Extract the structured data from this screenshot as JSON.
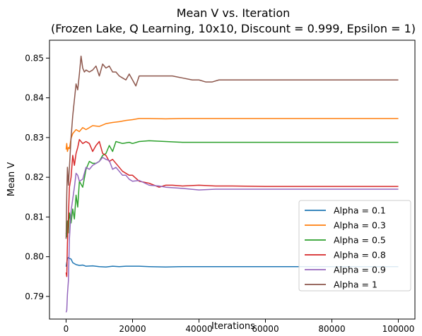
{
  "chart_data": {
    "type": "line",
    "title": "Mean V vs. Iteration",
    "subtitle": "(Frozen Lake, Q Learning, 10x10, Discount = 0.999, Epsilon = 1)",
    "xlabel": "Iterations",
    "ylabel": "Mean V",
    "xlim": [
      -5000,
      105000
    ],
    "ylim": [
      0.7843,
      0.8545
    ],
    "x_ticks": [
      0,
      20000,
      40000,
      60000,
      80000,
      100000
    ],
    "x_tick_labels": [
      "0",
      "20000",
      "40000",
      "60000",
      "80000",
      "100000"
    ],
    "y_ticks": [
      0.79,
      0.8,
      0.81,
      0.82,
      0.83,
      0.84,
      0.85
    ],
    "y_tick_labels": [
      "0.79",
      "0.80",
      "0.81",
      "0.82",
      "0.83",
      "0.84",
      "0.85"
    ],
    "grid": false,
    "legend_position": "lower-right",
    "series": [
      {
        "name": "Alpha = 0.1",
        "color": "#1f77b4",
        "x": [
          0,
          200,
          400,
          700,
          1000,
          1500,
          2000,
          3000,
          4000,
          5000,
          6000,
          8000,
          10000,
          12000,
          14000,
          16000,
          18000,
          20000,
          22000,
          25000,
          30000,
          35000,
          40000,
          50000,
          60000,
          80000,
          100000
        ],
        "y": [
          0.7975,
          0.7985,
          0.7995,
          0.7998,
          0.7996,
          0.7994,
          0.7985,
          0.798,
          0.7978,
          0.7979,
          0.7976,
          0.7977,
          0.7975,
          0.7974,
          0.7976,
          0.7975,
          0.7976,
          0.7976,
          0.7976,
          0.7975,
          0.7974,
          0.7975,
          0.7975,
          0.7975,
          0.7975,
          0.7975,
          0.7975
        ]
      },
      {
        "name": "Alpha = 0.3",
        "color": "#ff7f0e",
        "x": [
          0,
          200,
          400,
          700,
          1000,
          1500,
          2000,
          3000,
          4000,
          5000,
          6000,
          8000,
          10000,
          12000,
          14000,
          16000,
          18000,
          20000,
          22000,
          25000,
          30000,
          35000,
          40000,
          50000,
          60000,
          80000,
          100000
        ],
        "y": [
          0.827,
          0.8285,
          0.8265,
          0.8275,
          0.8272,
          0.8298,
          0.831,
          0.832,
          0.8315,
          0.8325,
          0.832,
          0.833,
          0.8328,
          0.8335,
          0.8338,
          0.834,
          0.8343,
          0.8345,
          0.8348,
          0.8348,
          0.8347,
          0.8348,
          0.8348,
          0.8348,
          0.8348,
          0.8348,
          0.8348
        ]
      },
      {
        "name": "Alpha = 0.5",
        "color": "#2ca02c",
        "x": [
          0,
          200,
          400,
          700,
          1000,
          1500,
          2000,
          2500,
          3000,
          3500,
          4000,
          5000,
          6000,
          7000,
          8000,
          9000,
          10000,
          11000,
          12000,
          13000,
          14000,
          15000,
          17000,
          19000,
          20000,
          22000,
          25000,
          30000,
          35000,
          40000,
          50000,
          60000,
          80000,
          100000
        ],
        "y": [
          0.806,
          0.805,
          0.809,
          0.806,
          0.811,
          0.8085,
          0.812,
          0.8095,
          0.8155,
          0.8125,
          0.819,
          0.8175,
          0.822,
          0.824,
          0.8235,
          0.8235,
          0.824,
          0.8255,
          0.826,
          0.828,
          0.8265,
          0.829,
          0.8285,
          0.8288,
          0.8285,
          0.829,
          0.8292,
          0.829,
          0.8288,
          0.8288,
          0.8288,
          0.8288,
          0.8288,
          0.8288
        ]
      },
      {
        "name": "Alpha = 0.8",
        "color": "#d62728",
        "x": [
          0,
          200,
          400,
          700,
          1000,
          1500,
          2000,
          2500,
          3000,
          3500,
          4000,
          5000,
          6000,
          7000,
          8000,
          9000,
          10000,
          11000,
          12000,
          13000,
          14000,
          15000,
          17000,
          19000,
          20000,
          22000,
          25000,
          28000,
          30000,
          32000,
          35000,
          40000,
          45000,
          50000,
          60000,
          80000,
          100000
        ],
        "y": [
          0.796,
          0.795,
          0.8035,
          0.81,
          0.8175,
          0.82,
          0.8255,
          0.823,
          0.826,
          0.8275,
          0.8295,
          0.8285,
          0.829,
          0.8285,
          0.8265,
          0.828,
          0.829,
          0.826,
          0.8255,
          0.824,
          0.8245,
          0.8235,
          0.8215,
          0.8205,
          0.8205,
          0.819,
          0.8185,
          0.8175,
          0.818,
          0.818,
          0.8178,
          0.818,
          0.8178,
          0.8178,
          0.8177,
          0.8177,
          0.8177
        ]
      },
      {
        "name": "Alpha = 0.9",
        "color": "#9467bd",
        "x": [
          0,
          200,
          400,
          700,
          1000,
          1500,
          2000,
          2500,
          3000,
          3500,
          4000,
          5000,
          6000,
          7000,
          8000,
          9000,
          10000,
          11000,
          12000,
          13000,
          14000,
          15000,
          16000,
          17000,
          18000,
          19000,
          20000,
          22000,
          25000,
          28000,
          30000,
          35000,
          40000,
          45000,
          50000,
          60000,
          80000,
          100000
        ],
        "y": [
          0.786,
          0.7865,
          0.7905,
          0.794,
          0.8045,
          0.8115,
          0.8145,
          0.8175,
          0.821,
          0.8205,
          0.819,
          0.8195,
          0.8225,
          0.822,
          0.823,
          0.8235,
          0.824,
          0.825,
          0.8245,
          0.8242,
          0.822,
          0.8225,
          0.8215,
          0.8205,
          0.8205,
          0.8195,
          0.819,
          0.8192,
          0.818,
          0.8178,
          0.8175,
          0.8172,
          0.8168,
          0.817,
          0.817,
          0.817,
          0.817,
          0.817
        ]
      },
      {
        "name": "Alpha = 1",
        "color": "#8c564b",
        "x": [
          0,
          200,
          400,
          700,
          1000,
          1500,
          2000,
          2500,
          3000,
          3500,
          4000,
          4500,
          5000,
          5500,
          6000,
          7000,
          8000,
          9000,
          10000,
          11000,
          12000,
          13000,
          14000,
          15000,
          16000,
          17000,
          18000,
          19000,
          20000,
          21000,
          22000,
          24000,
          26000,
          28000,
          30000,
          32000,
          35000,
          38000,
          40000,
          42000,
          44000,
          46000,
          50000,
          60000,
          80000,
          100000
        ],
        "y": [
          0.8045,
          0.8155,
          0.8225,
          0.818,
          0.8225,
          0.83,
          0.8355,
          0.8395,
          0.8435,
          0.842,
          0.846,
          0.8505,
          0.8475,
          0.8465,
          0.847,
          0.8465,
          0.847,
          0.848,
          0.8455,
          0.8485,
          0.8475,
          0.848,
          0.8465,
          0.8465,
          0.8455,
          0.845,
          0.8445,
          0.846,
          0.8445,
          0.843,
          0.8455,
          0.8455,
          0.8455,
          0.8455,
          0.8455,
          0.8455,
          0.845,
          0.8445,
          0.8445,
          0.844,
          0.844,
          0.8445,
          0.8445,
          0.8445,
          0.8445,
          0.8445
        ]
      }
    ]
  }
}
